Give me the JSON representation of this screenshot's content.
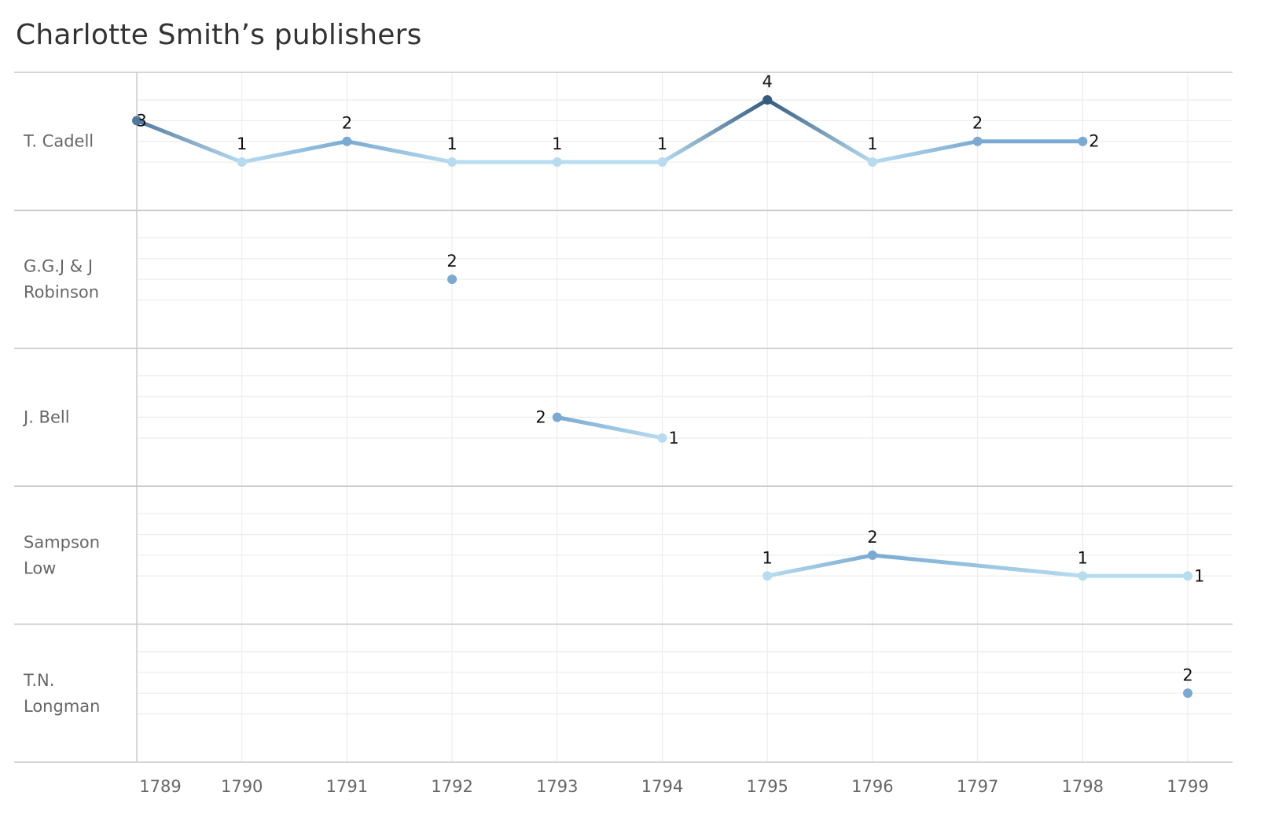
{
  "chart_data": {
    "type": "line",
    "title": "Charlotte Smith’s publishers",
    "x": [
      "1789",
      "1790",
      "1791",
      "1792",
      "1793",
      "1794",
      "1795",
      "1796",
      "1797",
      "1798",
      "1799"
    ],
    "rows": [
      {
        "label_lines": [
          "T. Cadell"
        ],
        "points": [
          [
            1789,
            3
          ],
          [
            1790,
            1
          ],
          [
            1791,
            2
          ],
          [
            1792,
            1
          ],
          [
            1793,
            1
          ],
          [
            1794,
            1
          ],
          [
            1795,
            4
          ],
          [
            1796,
            1
          ],
          [
            1797,
            2
          ],
          [
            1798,
            2
          ]
        ]
      },
      {
        "label_lines": [
          "G.G.J & J",
          "Robinson"
        ],
        "points": [
          [
            1792,
            2
          ]
        ]
      },
      {
        "label_lines": [
          "J. Bell"
        ],
        "points": [
          [
            1793,
            2
          ],
          [
            1794,
            1
          ]
        ]
      },
      {
        "label_lines": [
          "Sampson",
          "Low"
        ],
        "points": [
          [
            1795,
            1
          ],
          [
            1796,
            2
          ],
          [
            1798,
            1
          ],
          [
            1799,
            1
          ]
        ]
      },
      {
        "label_lines": [
          "T.N.",
          "Longman"
        ],
        "points": [
          [
            1799,
            2
          ]
        ]
      }
    ],
    "y_range_per_row": [
      0,
      4
    ],
    "grid": true,
    "colors": {
      "v1": "#b7dcef",
      "v2": "#7aaad2",
      "v3": "#52789f",
      "v4": "#345a80",
      "grid": "#ececec",
      "row_divider": "#c8c8c8",
      "axis": "#cccccc"
    }
  }
}
